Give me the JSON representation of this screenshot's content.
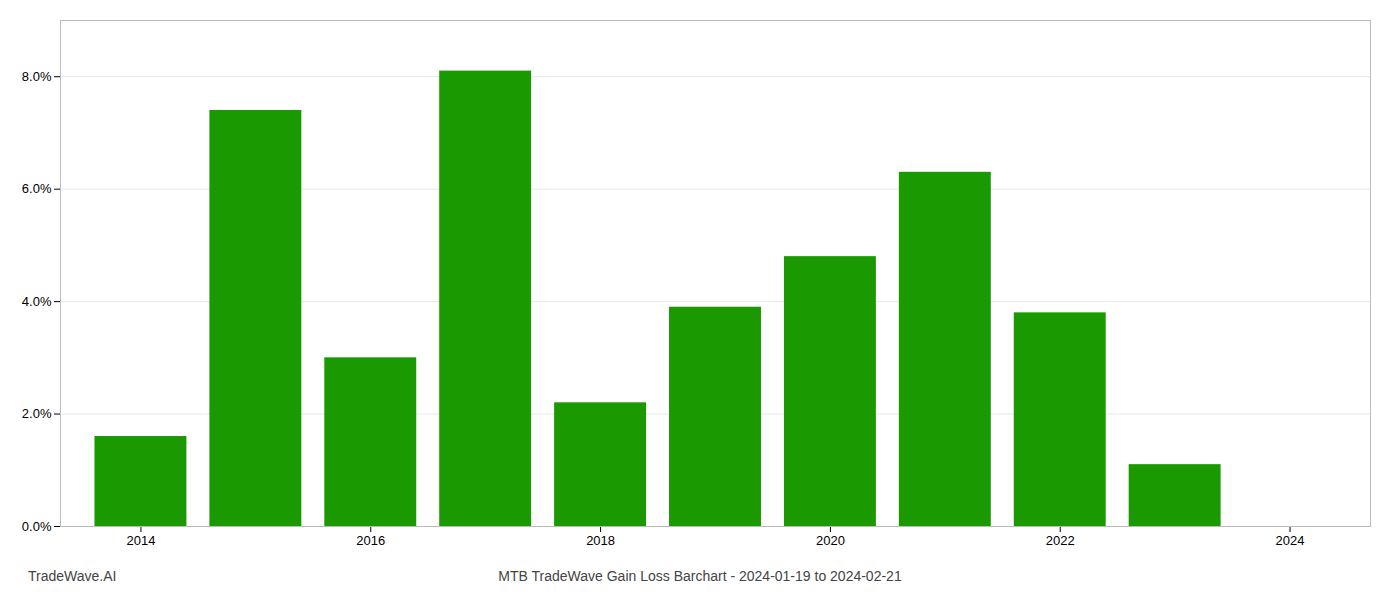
{
  "chart_data": {
    "type": "bar",
    "title": "MTB TradeWave Gain Loss Barchart - 2024-01-19 to 2024-02-21",
    "annotations": [
      "TradeWave.AI"
    ],
    "x": [
      2014,
      2015,
      2016,
      2017,
      2018,
      2019,
      2020,
      2021,
      2022,
      2023
    ],
    "values": [
      0.016,
      0.074,
      0.03,
      0.081,
      0.022,
      0.039,
      0.048,
      0.063,
      0.038,
      0.011
    ],
    "color": "#1a9a00",
    "xlim": [
      2013.3,
      2024.7
    ],
    "xticks": [
      2014,
      2016,
      2018,
      2020,
      2022,
      2024
    ],
    "ylim": [
      0,
      0.09
    ],
    "yticks": [
      {
        "value": 0.0,
        "label": "0.0%"
      },
      {
        "value": 0.02,
        "label": "2.0%"
      },
      {
        "value": 0.04,
        "label": "4.0%"
      },
      {
        "value": 0.06,
        "label": "6.0%"
      },
      {
        "value": 0.08,
        "label": "8.0%"
      }
    ],
    "grid": true
  }
}
